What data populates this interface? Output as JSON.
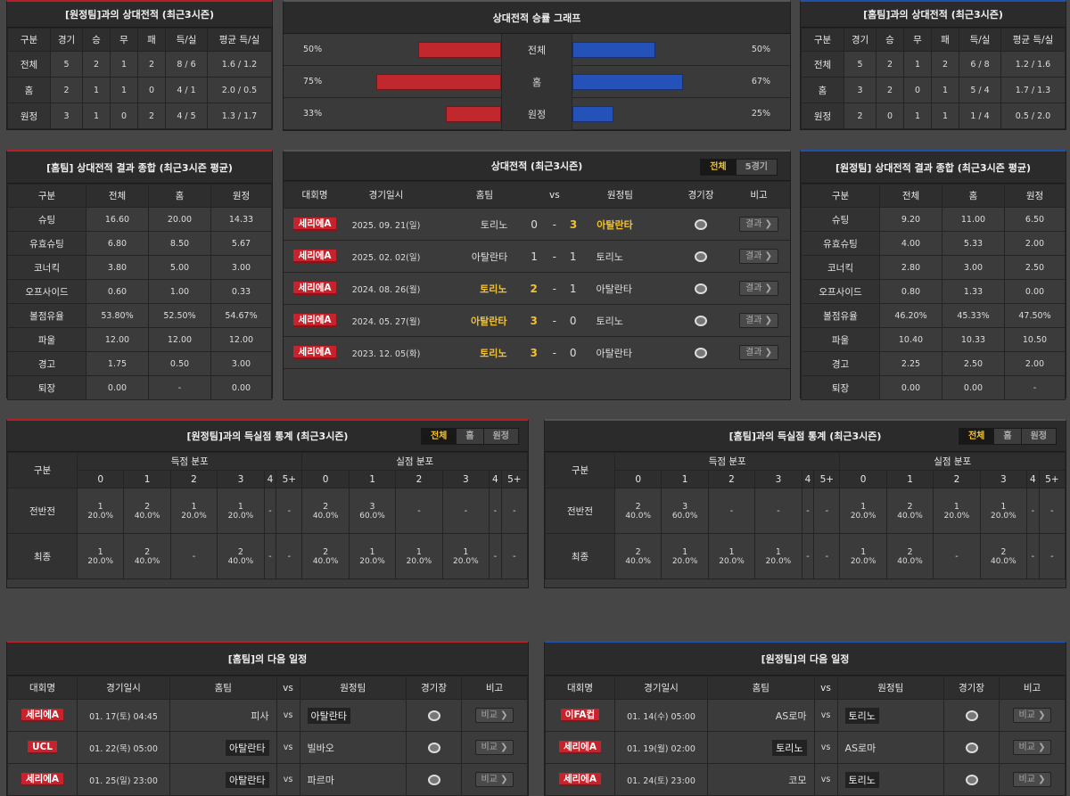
{
  "h2h_left": {
    "title": "[원정팀]과의 상대전적 (최근3시즌)",
    "cols": [
      "구분",
      "경기",
      "승",
      "무",
      "패",
      "득/실",
      "평균 득/실"
    ],
    "rows": [
      [
        "전체",
        "5",
        "2",
        "1",
        "2",
        "8 / 6",
        "1.6 / 1.2"
      ],
      [
        "홈",
        "2",
        "1",
        "1",
        "0",
        "4 / 1",
        "2.0 / 0.5"
      ],
      [
        "원정",
        "3",
        "1",
        "0",
        "2",
        "4 / 5",
        "1.3 / 1.7"
      ]
    ]
  },
  "graph": {
    "title": "상대전적 승률 그래프",
    "rows": [
      {
        "label": "전체",
        "left": "50%",
        "right": "50%",
        "left_val": 50,
        "right_val": 50
      },
      {
        "label": "홈",
        "left": "75%",
        "right": "67%",
        "left_val": 75,
        "right_val": 67
      },
      {
        "label": "원정",
        "left": "33%",
        "right": "25%",
        "left_val": 33,
        "right_val": 25
      }
    ]
  },
  "h2h_right": {
    "title": "[홈팀]과의 상대전적 (최근3시즌)",
    "cols": [
      "구분",
      "경기",
      "승",
      "무",
      "패",
      "득/실",
      "평균 득/실"
    ],
    "rows": [
      [
        "전체",
        "5",
        "2",
        "1",
        "2",
        "6 / 8",
        "1.2 / 1.6"
      ],
      [
        "홈",
        "3",
        "2",
        "0",
        "1",
        "5 / 4",
        "1.7 / 1.3"
      ],
      [
        "원정",
        "2",
        "0",
        "1",
        "1",
        "1 / 4",
        "0.5 / 2.0"
      ]
    ]
  },
  "home_summary": {
    "title": "[홈팀] 상대전적 결과 종합 (최근3시즌 평균)",
    "cols": [
      "구분",
      "전체",
      "홈",
      "원정"
    ],
    "rows": [
      [
        "슈팅",
        "16.60",
        "20.00",
        "14.33"
      ],
      [
        "유효슈팅",
        "6.80",
        "8.50",
        "5.67"
      ],
      [
        "코너킥",
        "3.80",
        "5.00",
        "3.00"
      ],
      [
        "오프사이드",
        "0.60",
        "1.00",
        "0.33"
      ],
      [
        "볼점유율",
        "53.80%",
        "52.50%",
        "54.67%"
      ],
      [
        "파울",
        "12.00",
        "12.00",
        "12.00"
      ],
      [
        "경고",
        "1.75",
        "0.50",
        "3.00"
      ],
      [
        "퇴장",
        "0.00",
        "-",
        "0.00"
      ]
    ]
  },
  "matches": {
    "title": "상대전적 (최근3시즌)",
    "tabs": [
      "전체",
      "5경기"
    ],
    "h_league": "대회명",
    "h_date": "경기일시",
    "h_home": "홈팀",
    "h_vs": "vs",
    "h_away": "원정팀",
    "h_stadium": "경기장",
    "h_note": "비고",
    "btn": "결과 ❯",
    "rows": [
      {
        "league": "세리에A",
        "date": "2025. 09. 21(일)",
        "home": "토리노",
        "hs": "0",
        "as": "3",
        "away": "아탈란타",
        "winner": "away"
      },
      {
        "league": "세리에A",
        "date": "2025. 02. 02(일)",
        "home": "아탈란타",
        "hs": "1",
        "as": "1",
        "away": "토리노",
        "winner": "none"
      },
      {
        "league": "세리에A",
        "date": "2024. 08. 26(월)",
        "home": "토리노",
        "hs": "2",
        "as": "1",
        "away": "아탈란타",
        "winner": "home"
      },
      {
        "league": "세리에A",
        "date": "2024. 05. 27(월)",
        "home": "아탈란타",
        "hs": "3",
        "as": "0",
        "away": "토리노",
        "winner": "home"
      },
      {
        "league": "세리에A",
        "date": "2023. 12. 05(화)",
        "home": "토리노",
        "hs": "3",
        "as": "0",
        "away": "아탈란타",
        "winner": "home"
      }
    ]
  },
  "away_summary": {
    "title": "[원정팀] 상대전적 결과 종합 (최근3시즌 평균)",
    "cols": [
      "구분",
      "전체",
      "홈",
      "원정"
    ],
    "rows": [
      [
        "슈팅",
        "9.20",
        "11.00",
        "6.50"
      ],
      [
        "유효슈팅",
        "4.00",
        "5.33",
        "2.00"
      ],
      [
        "코너킥",
        "2.80",
        "3.00",
        "2.50"
      ],
      [
        "오프사이드",
        "0.80",
        "1.33",
        "0.00"
      ],
      [
        "볼점유율",
        "46.20%",
        "45.33%",
        "47.50%"
      ],
      [
        "파울",
        "10.40",
        "10.33",
        "10.50"
      ],
      [
        "경고",
        "2.25",
        "2.50",
        "2.00"
      ],
      [
        "퇴장",
        "0.00",
        "0.00",
        "-"
      ]
    ]
  },
  "goals_left": {
    "title": "[원정팀]과의 득실점 통계 (최근3시즌)",
    "tabs": [
      "전체",
      "홈",
      "원정"
    ],
    "h_cat": "구분",
    "h_scored": "득점 분포",
    "h_conceded": "실점 분포",
    "nums": [
      "0",
      "1",
      "2",
      "3",
      "4",
      "5+"
    ],
    "rows": [
      {
        "label": "전반전",
        "cells": [
          [
            "1",
            "20.0%"
          ],
          [
            "2",
            "40.0%"
          ],
          [
            "1",
            "20.0%"
          ],
          [
            "1",
            "20.0%"
          ],
          [
            "-",
            ""
          ],
          [
            "-",
            ""
          ],
          [
            "2",
            "40.0%"
          ],
          [
            "3",
            "60.0%"
          ],
          [
            "-",
            ""
          ],
          [
            "-",
            ""
          ],
          [
            "-",
            ""
          ],
          [
            "-",
            ""
          ]
        ]
      },
      {
        "label": "최종",
        "cells": [
          [
            "1",
            "20.0%"
          ],
          [
            "2",
            "40.0%"
          ],
          [
            "-",
            ""
          ],
          [
            "2",
            "40.0%"
          ],
          [
            "-",
            ""
          ],
          [
            "-",
            ""
          ],
          [
            "2",
            "40.0%"
          ],
          [
            "1",
            "20.0%"
          ],
          [
            "1",
            "20.0%"
          ],
          [
            "1",
            "20.0%"
          ],
          [
            "-",
            ""
          ],
          [
            "-",
            ""
          ]
        ]
      }
    ]
  },
  "goals_right": {
    "title": "[홈팀]과의 득실점 통계 (최근3시즌)",
    "tabs": [
      "전체",
      "홈",
      "원정"
    ],
    "h_cat": "구분",
    "h_scored": "득점 분포",
    "h_conceded": "실점 분포",
    "nums": [
      "0",
      "1",
      "2",
      "3",
      "4",
      "5+"
    ],
    "rows": [
      {
        "label": "전반전",
        "cells": [
          [
            "2",
            "40.0%"
          ],
          [
            "3",
            "60.0%"
          ],
          [
            "-",
            ""
          ],
          [
            "-",
            ""
          ],
          [
            "-",
            ""
          ],
          [
            "-",
            ""
          ],
          [
            "1",
            "20.0%"
          ],
          [
            "2",
            "40.0%"
          ],
          [
            "1",
            "20.0%"
          ],
          [
            "1",
            "20.0%"
          ],
          [
            "-",
            ""
          ],
          [
            "-",
            ""
          ]
        ]
      },
      {
        "label": "최종",
        "cells": [
          [
            "2",
            "40.0%"
          ],
          [
            "1",
            "20.0%"
          ],
          [
            "1",
            "20.0%"
          ],
          [
            "1",
            "20.0%"
          ],
          [
            "-",
            ""
          ],
          [
            "-",
            ""
          ],
          [
            "1",
            "20.0%"
          ],
          [
            "2",
            "40.0%"
          ],
          [
            "-",
            ""
          ],
          [
            "2",
            "40.0%"
          ],
          [
            "-",
            ""
          ],
          [
            "-",
            ""
          ]
        ]
      }
    ]
  },
  "next_home": {
    "title": "[홈팀]의 다음 일정",
    "h_league": "대회명",
    "h_date": "경기일시",
    "h_home": "홈팀",
    "h_vs": "vs",
    "h_away": "원정팀",
    "h_stadium": "경기장",
    "h_note": "비고",
    "btn": "비교 ❯",
    "rows": [
      {
        "league": "세리에A",
        "date": "01. 17(토) 04:45",
        "home": "피사",
        "away": "아탈란타",
        "tag": "away"
      },
      {
        "league": "UCL",
        "date": "01. 22(목) 05:00",
        "home": "아탈란타",
        "away": "빌바오",
        "tag": "home"
      },
      {
        "league": "세리에A",
        "date": "01. 25(일) 23:00",
        "home": "아탈란타",
        "away": "파르마",
        "tag": "home"
      }
    ]
  },
  "next_away": {
    "title": "[원정팀]의 다음 일정",
    "h_league": "대회명",
    "h_date": "경기일시",
    "h_home": "홈팀",
    "h_vs": "vs",
    "h_away": "원정팀",
    "h_stadium": "경기장",
    "h_note": "비고",
    "btn": "비교 ❯",
    "rows": [
      {
        "league": "이FA컵",
        "date": "01. 14(수) 05:00",
        "home": "AS로마",
        "away": "토리노",
        "tag": "away"
      },
      {
        "league": "세리에A",
        "date": "01. 19(월) 02:00",
        "home": "토리노",
        "away": "AS로마",
        "tag": "home"
      },
      {
        "league": "세리에A",
        "date": "01. 24(토) 23:00",
        "home": "코모",
        "away": "토리노",
        "tag": "away"
      }
    ]
  },
  "colors": {
    "accent_red": "#c0282d",
    "accent_blue": "#2452b8",
    "highlight": "#f2c12e"
  }
}
